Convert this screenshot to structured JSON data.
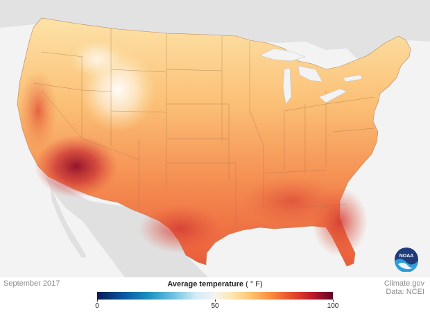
{
  "map": {
    "period": "September 2017",
    "variable": "Average temperature",
    "unit": "( ° F)",
    "palette": [
      "#0b1a55",
      "#08519c",
      "#1d91c0",
      "#6bc0e0",
      "#d4ecf6",
      "#f4f4f4",
      "#fde7b0",
      "#fdc56f",
      "#f98a3f",
      "#e44a2c",
      "#b7172b",
      "#5e0626"
    ],
    "legend_ticks": [
      {
        "value": 0,
        "label": "0"
      },
      {
        "value": 50,
        "label": "50"
      },
      {
        "value": 100,
        "label": "100"
      }
    ],
    "legend_range": [
      0,
      100
    ]
  },
  "credit": {
    "source_site": "Climate.gov",
    "data_source": "Data: NCEI"
  },
  "logo": {
    "text": "NOAA",
    "colors": {
      "dark": "#1f3b7a",
      "light": "#2e9cd8"
    }
  }
}
